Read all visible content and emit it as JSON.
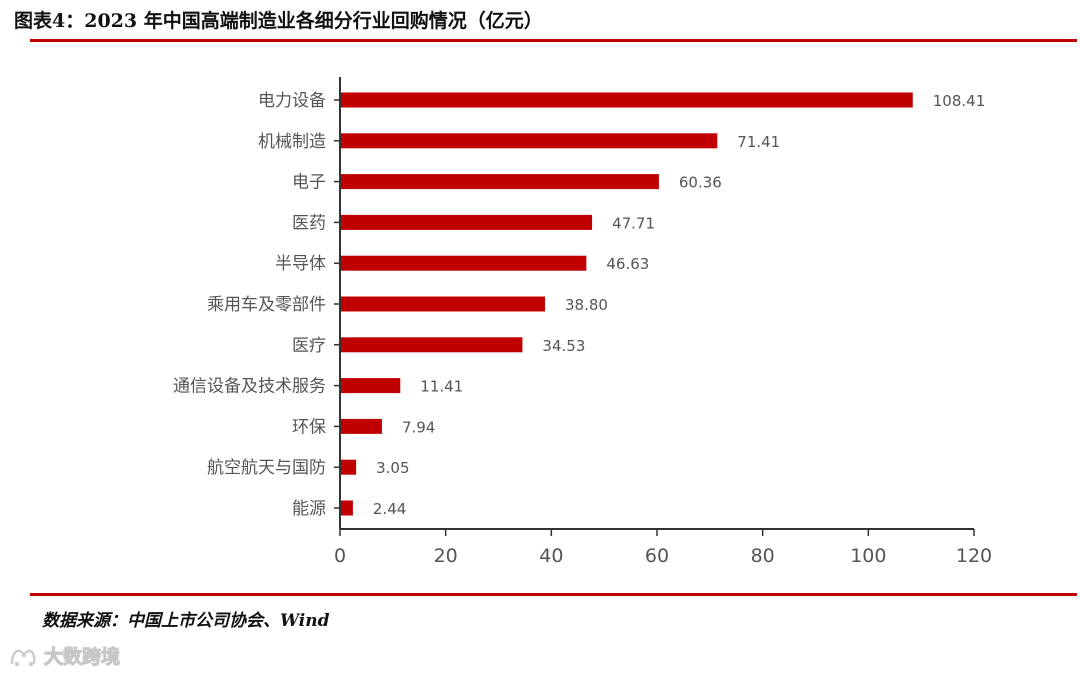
{
  "header": {
    "title": "图表4：2023 年中国高端制造业各细分行业回购情况（亿元）"
  },
  "colors": {
    "accent": "#c00000",
    "bar": "#c00000",
    "axis": "#333333",
    "label": "#555555"
  },
  "chart_data": {
    "type": "bar",
    "orientation": "horizontal",
    "title": "",
    "xlabel": "",
    "ylabel": "",
    "xlim": [
      0,
      120
    ],
    "x_ticks": [
      0,
      20,
      40,
      60,
      80,
      100,
      120
    ],
    "grid": false,
    "categories": [
      "电力设备",
      "机械制造",
      "电子",
      "医药",
      "半导体",
      "乘用车及零部件",
      "医疗",
      "通信设备及技术服务",
      "环保",
      "航空航天与国防",
      "能源"
    ],
    "values": [
      108.41,
      71.41,
      60.36,
      47.71,
      46.63,
      38.8,
      34.53,
      11.41,
      7.94,
      3.05,
      2.44
    ],
    "value_labels": [
      "108.41",
      "71.41",
      "60.36",
      "47.71",
      "46.63",
      "38.80",
      "34.53",
      "11.41",
      "7.94",
      "3.05",
      "2.44"
    ]
  },
  "footer": {
    "source": "数据来源：中国上市公司协会、Wind",
    "watermark_text": "大数跨境",
    "watermark_icon": "brand-logo-icon"
  }
}
